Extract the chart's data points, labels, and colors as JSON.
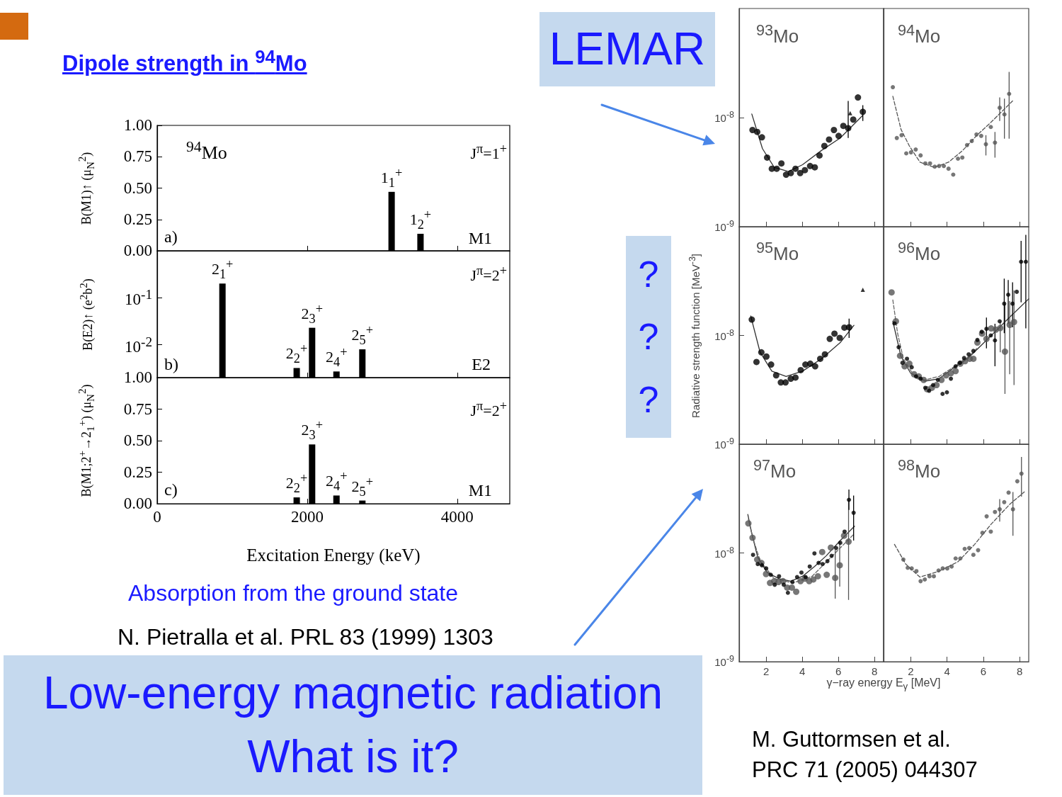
{
  "chart_data": [
    {
      "type": "bar",
      "title": "Dipole strength in $^{94}$Mo",
      "ylabel": "B(M1)↑ (μ$_{N}$$^{2}$)",
      "x": [
        3125,
        3510
      ],
      "values": [
        0.47,
        0.135
      ],
      "color": "#000000",
      "xlim": [
        0,
        4700
      ],
      "xticks": [
        0,
        2000,
        4000
      ],
      "ylim": [
        0,
        1
      ],
      "yticks": [
        {
          "value": 0,
          "label": "0.00"
        },
        {
          "value": 0.25,
          "label": "0.25"
        },
        {
          "value": 0.5,
          "label": "0.50"
        },
        {
          "value": 0.75,
          "label": "0.75"
        },
        {
          "value": 1,
          "label": "1.00"
        }
      ],
      "tick_labels": "y",
      "annotations": [
        "$^{94}$Mo",
        "J$^{π}$=1$^{+}$",
        "M1",
        "a)",
        {
          "text": "1$_{1}$$^{+}$",
          "x": 3125,
          "y": 0.47
        },
        {
          "text": "1$_{2}$$^{+}$",
          "x": 3510,
          "y": 0.135
        }
      ]
    },
    {
      "type": "bar",
      "ylabel": "B(E2)↑ (e$^{2}$b$^{2}$)",
      "x": [
        870,
        1860,
        2065,
        2390,
        2735
      ],
      "values": [
        0.2,
        0.0032,
        0.023,
        0.0027,
        0.008
      ],
      "color": "#000000",
      "xlim": [
        0,
        4700
      ],
      "xticks": [
        0,
        2000,
        4000
      ],
      "ylim": [
        0.002,
        1
      ],
      "yticks": [
        {
          "value": 0.1,
          "label": "10$^{-1}$"
        },
        {
          "value": 0.01,
          "label": "10$^{-2}$"
        }
      ],
      "log": "y",
      "tick_labels": "y",
      "annotations": [
        "J$^{π}$=2$^{+}$",
        "E2",
        "b)",
        {
          "text": "2$_{1}$$^{+}$",
          "x": 870,
          "y": 0.2
        },
        {
          "text": "2$_{2}$$^{+}$",
          "x": 1860,
          "y": 0.0032
        },
        {
          "text": "2$_{3}$$^{+}$",
          "x": 2065,
          "y": 0.023
        },
        {
          "text": "2$_{4}$$^{+}$",
          "x": 2390,
          "y": 0.0027
        },
        {
          "text": "2$_{5}$$^{+}$",
          "x": 2735,
          "y": 0.008
        }
      ]
    },
    {
      "type": "bar",
      "ylabel": "B(M1;2$^{+}$→2$_{1}$$^{+}$) (μ$_{N}$$^{2}$)",
      "xlabel": "Excitation Energy (keV)",
      "x": [
        1860,
        2065,
        2390,
        2735
      ],
      "values": [
        0.05,
        0.47,
        0.065,
        0.025
      ],
      "color": "#000000",
      "xlim": [
        0,
        4700
      ],
      "xticks": [
        0,
        2000,
        4000
      ],
      "ylim": [
        0,
        1
      ],
      "yticks": [
        {
          "value": 0,
          "label": "0.00"
        },
        {
          "value": 0.25,
          "label": "0.25"
        },
        {
          "value": 0.5,
          "label": "0.50"
        },
        {
          "value": 0.75,
          "label": "0.75"
        },
        {
          "value": 1,
          "label": "1.00"
        }
      ],
      "annotations": [
        "J$^{π}$=2$^{+}$",
        "M1",
        "c)",
        "Absorption from the ground state",
        "N. Pietralla et al. PRL 83 (1999) 1303",
        {
          "text": "2$_{2}$$^{+}$",
          "x": 1860,
          "y": 0.05
        },
        {
          "text": "2$_{3}$$^{+}$",
          "x": 2065,
          "y": 0.47
        },
        {
          "text": "2$_{4}$$^{+}$",
          "x": 2390,
          "y": 0.065
        },
        {
          "text": "2$_{5}$$^{+}$",
          "x": 2735,
          "y": 0.025
        }
      ]
    },
    {
      "type": "scatter",
      "xlim": [
        0.5,
        8.5
      ],
      "xticks": [
        2,
        4,
        6,
        8
      ],
      "ylim": [
        1e-09,
        1e-07
      ],
      "yticks": [
        {
          "value": 1e-09,
          "label": "10$^{-9}$"
        },
        {
          "value": 1e-08,
          "label": "10$^{-8}$"
        }
      ],
      "log": "y",
      "tick_labels": "y",
      "annotations": [
        "$^{93}$Mo",
        "LEMAR"
      ],
      "series": [
        {
          "type": "line",
          "line_style": "solid",
          "color": "#333333",
          "x": [
            1.2,
            1.79,
            2.44,
            3.23,
            4.01,
            5.06,
            6.1,
            7.35
          ],
          "values": [
            1.08e-08,
            5.2e-09,
            3.5e-09,
            3.2e-09,
            3.7e-09,
            5e-09,
            6.5e-09,
            1.05e-08
          ]
        },
        {
          "marker": "circle",
          "color": "#000000",
          "x": [
            1.24,
            1.5,
            1.76,
            2.05,
            2.31,
            2.58,
            2.84,
            3.1,
            3.36,
            3.62,
            3.88,
            4.14,
            4.43,
            4.69,
            4.95,
            5.22,
            5.48,
            5.75,
            6.01,
            6.27,
            6.54,
            6.82,
            7.08,
            7.35
          ],
          "values": [
            7.7e-09,
            7.4e-09,
            6.6e-09,
            4.3e-09,
            3.4e-09,
            3.4e-09,
            3.8e-09,
            3e-09,
            3.1e-09,
            3.4e-09,
            3.1e-09,
            3.3e-09,
            3.6e-09,
            3.5e-09,
            4.5e-09,
            5.5e-09,
            6.3e-09,
            7.7e-09,
            6.8e-09,
            8.4e-09,
            8e-09,
            9.6e-09,
            1.53e-08,
            1.13e-08
          ],
          "errors": [
            null,
            null,
            null,
            null,
            null,
            null,
            null,
            null,
            null,
            null,
            null,
            null,
            null,
            null,
            null,
            null,
            null,
            null,
            null,
            null,
            [
              6.5e-09,
              1.42e-08
            ],
            null,
            null,
            [
              9.3e-09,
              1.3e-08
            ]
          ]
        },
        {
          "marker": "triangle",
          "color": "#000000",
          "x": [
            6.65
          ],
          "values": [
            1.1e-08
          ]
        }
      ]
    },
    {
      "type": "scatter",
      "xlim": [
        0.5,
        8.5
      ],
      "xticks": [
        2,
        4,
        6,
        8
      ],
      "ylim": [
        1e-09,
        1e-07
      ],
      "log": "y",
      "tick_labels": false,
      "annotations": [
        "$^{94}$Mo"
      ],
      "series": [
        {
          "type": "line",
          "line_style": "dashed",
          "color": "#555555",
          "x": [
            1.01,
            1.46,
            1.92,
            2.51,
            3.29,
            4.08,
            4.86,
            5.65,
            6.43,
            7.61
          ],
          "values": [
            1.57e-08,
            7.8e-09,
            5.5e-09,
            3.9e-09,
            3.5e-09,
            3.9e-09,
            5e-09,
            6.9e-09,
            9.1e-09,
            1.42e-08
          ]
        },
        {
          "marker": "circle",
          "color": "#555555",
          "x": [
            1.01,
            1.23,
            1.49,
            1.75,
            2.01,
            2.27,
            2.54,
            2.8,
            3.06,
            3.32,
            3.56,
            3.82,
            4.08,
            4.34,
            4.6,
            4.84,
            5.1,
            5.36,
            5.62,
            5.88,
            6.14,
            6.41,
            6.64,
            6.9,
            7.16,
            7.42
          ],
          "values": [
            1.9e-08,
            6.5e-09,
            6.9e-09,
            4.7e-09,
            4.8e-09,
            5.1e-09,
            4.5e-09,
            3.8e-09,
            3.8e-09,
            3.55e-09,
            3.6e-09,
            3.6e-09,
            3.4e-09,
            3e-09,
            4.2e-09,
            4.3e-09,
            5.6e-09,
            6.1e-09,
            7e-09,
            6.8e-09,
            5.7e-09,
            8.2e-09,
            5.9e-09,
            1.23e-08,
            1.07e-08,
            1.65e-08
          ],
          "errors": [
            null,
            null,
            null,
            null,
            null,
            null,
            null,
            null,
            null,
            null,
            null,
            null,
            null,
            null,
            null,
            null,
            null,
            null,
            null,
            null,
            [
              4.5e-09,
              6.9e-09
            ],
            null,
            [
              4.3e-09,
              7.4e-09
            ],
            [
              9.3e-09,
              1.53e-08
            ],
            [
              6.4e-09,
              1.49e-08
            ],
            [
              6.4e-09,
              2.62e-08
            ]
          ]
        }
      ]
    },
    {
      "type": "scatter",
      "ylabel": "Radiative strength function [MeV$^{-3}$]",
      "xlim": [
        0.5,
        8.5
      ],
      "xticks": [
        2,
        4,
        6,
        8
      ],
      "ylim": [
        1e-09,
        1e-07
      ],
      "yticks": [
        {
          "value": 1e-09,
          "label": "10$^{-9}$"
        },
        {
          "value": 1e-08,
          "label": "10$^{-8}$"
        }
      ],
      "log": "y",
      "tick_labels": "y",
      "annotations": [
        "$^{95}$Mo",
        "?\n?\n?"
      ],
      "series": [
        {
          "type": "line",
          "line_style": "solid",
          "color": "#333333",
          "x": [
            1.14,
            1.66,
            2.31,
            3.1,
            4.01,
            5.06,
            6.1,
            6.86
          ],
          "values": [
            1.51e-08,
            7e-09,
            4.7e-09,
            4.2e-09,
            4.7e-09,
            6.1e-09,
            8.6e-09,
            1.24e-08
          ]
        },
        {
          "marker": "circle",
          "color": "#000000",
          "x": [
            1.2,
            1.46,
            1.73,
            2.01,
            2.27,
            2.55,
            2.81,
            3.07,
            3.36,
            3.62,
            3.91,
            4.17,
            4.44,
            4.71,
            4.99,
            5.25,
            5.52,
            5.78,
            6.07,
            6.33,
            6.59
          ],
          "values": [
            1.4e-08,
            5.7e-09,
            7e-09,
            6.4e-09,
            5.4e-09,
            4.3e-09,
            3.7e-09,
            3.7e-09,
            4e-09,
            4.1e-09,
            4.8e-09,
            5.4e-09,
            5.5e-09,
            5.2e-09,
            6.1e-09,
            6.7e-09,
            9.3e-09,
            1.04e-08,
            9.5e-09,
            1.18e-08,
            1.19e-08
          ],
          "errors": [
            null,
            null,
            null,
            null,
            null,
            null,
            null,
            null,
            null,
            null,
            null,
            null,
            null,
            null,
            null,
            null,
            null,
            null,
            null,
            null,
            [
              9.5e-09,
              1.43e-08
            ]
          ]
        },
        {
          "marker": "triangle",
          "color": "#000000",
          "x": [
            7.35
          ],
          "values": [
            2.63e-08
          ]
        }
      ]
    },
    {
      "type": "scatter",
      "xlim": [
        0.5,
        8.5
      ],
      "xticks": [
        2,
        4,
        6,
        8
      ],
      "ylim": [
        1e-09,
        1e-07
      ],
      "log": "y",
      "tick_labels": false,
      "annotations": [
        "$^{96}$Mo"
      ],
      "series": [
        {
          "type": "line",
          "line_style": "solid",
          "color": "#333333",
          "x": [
            1.01,
            1.46,
            1.99,
            2.77,
            3.56,
            4.34,
            5.12,
            5.91,
            6.69,
            7.48,
            8.5
          ],
          "values": [
            1.35e-08,
            6.4e-09,
            4.5e-09,
            3.8e-09,
            4e-09,
            5e-09,
            6.1e-09,
            8.2e-09,
            1.1e-08,
            1.49e-08,
            2.17e-08
          ]
        },
        {
          "type": "line",
          "line_style": "dashed",
          "color": "#666666",
          "x": [
            1.01,
            1.27,
            1.59,
            2.12,
            2.77,
            3.56,
            4.34,
            5.12,
            5.64
          ],
          "values": [
            2.12e-08,
            1.05e-08,
            6.1e-09,
            4.4e-09,
            3.9e-09,
            4.2e-09,
            5.1e-09,
            6.2e-09,
            7.6e-09
          ]
        },
        {
          "marker": "circle",
          "color": "#555555",
          "x": [
            0.94,
            1.18,
            1.41,
            1.66,
            1.92,
            2.18,
            2.44,
            2.71,
            2.9,
            3.16,
            3.42,
            3.69,
            3.95,
            4.21,
            4.47,
            4.73,
            4.99,
            5.25,
            5.45,
            5.67,
            5.93,
            6.17,
            6.43,
            6.69,
            6.93,
            7.19,
            7.45,
            7.69
          ],
          "values": [
            2.49e-08,
            1.35e-08,
            6.5e-09,
            5.2e-09,
            5.5e-09,
            4.4e-09,
            4.2e-09,
            3.9e-09,
            3.2e-09,
            3.3e-09,
            3.5e-09,
            3.9e-09,
            4.3e-09,
            4.5e-09,
            4.7e-09,
            5.5e-09,
            5.8e-09,
            6.1e-09,
            6.1e-09,
            8.6e-09,
            1.04e-08,
            9.3e-09,
            1.16e-08,
            1.13e-08,
            1.17e-08,
            7.1e-09,
            1.25e-08,
            1.33e-08
          ],
          "errors": [
            null,
            null,
            null,
            null,
            null,
            null,
            null,
            null,
            null,
            null,
            null,
            null,
            null,
            null,
            null,
            null,
            null,
            null,
            null,
            null,
            null,
            null,
            null,
            null,
            [
              7e-09,
              1.35e-08
            ],
            [
              2.9e-09,
              1.96e-08
            ],
            [
              4.4e-09,
              2.07e-08
            ],
            [
              3.5e-09,
              2.59e-08
            ]
          ]
        },
        {
          "marker": "circle",
          "color": "#000000",
          "x": [
            1.1,
            1.33,
            1.54,
            1.79,
            2.05,
            2.29,
            2.54,
            2.8,
            3.01,
            3.23,
            3.49,
            3.75,
            3.99,
            4.21,
            4.47,
            4.71,
            4.94,
            5.19,
            5.45,
            5.67,
            5.91,
            6.17,
            6.41,
            6.64,
            6.9,
            7.15,
            7.37,
            7.61,
            7.84,
            8.08,
            8.34
          ],
          "values": [
            1.29e-08,
            7.8e-09,
            5.6e-09,
            6.1e-09,
            5.1e-09,
            4.2e-09,
            4e-09,
            3.3e-09,
            3.1e-09,
            3.5e-09,
            3.9e-09,
            2.9e-09,
            3e-09,
            4e-09,
            5.2e-09,
            5.6e-09,
            6.2e-09,
            6.7e-09,
            7.2e-09,
            9.1e-09,
            1.08e-08,
            1.15e-08,
            1e-08,
            9e-09,
            1.35e-08,
            1.96e-08,
            2.37e-08,
            1.96e-08,
            2.52e-08,
            4.76e-08,
            4.76e-08
          ],
          "errors": [
            null,
            null,
            null,
            null,
            null,
            null,
            null,
            null,
            null,
            null,
            null,
            null,
            null,
            null,
            null,
            null,
            null,
            null,
            null,
            null,
            null,
            [
              7.6e-09,
              1.46e-08
            ],
            null,
            [
              5.2e-09,
              1.28e-08
            ],
            null,
            [
              1.05e-08,
              3.33e-08
            ],
            [
              1.28e-08,
              3.24e-08
            ],
            [
              1.19e-08,
              3.08e-08
            ],
            null,
            [
              2.02e-08,
              7.4e-08
            ],
            [
              1.16e-08,
              8.4e-08
            ]
          ]
        }
      ]
    },
    {
      "type": "scatter",
      "xlabel": "γ−ray energy E$_{γ}$ [MeV]",
      "xlim": [
        0.5,
        8.5
      ],
      "xticks": [
        2,
        4,
        6,
        8
      ],
      "ylim": [
        1e-09,
        1e-07
      ],
      "yticks": [
        {
          "value": 1e-09,
          "label": "10$^{-9}$"
        },
        {
          "value": 1e-08,
          "label": "10$^{-8}$"
        }
      ],
      "log": "y",
      "annotations": [
        "$^{97}$Mo",
        "Low-energy magnetic radiation\nWhat is it?"
      ],
      "series": [
        {
          "type": "line",
          "line_style": "solid",
          "color": "#333333",
          "x": [
            0.98,
            1.2,
            1.53,
            2.05,
            2.71,
            3.36,
            4.01,
            4.67,
            5.32,
            6.1,
            6.89
          ],
          "values": [
            2.26e-08,
            1.51e-08,
            9.1e-09,
            6.6e-09,
            5.8e-09,
            5.5e-09,
            6.1e-09,
            7.5e-09,
            9.4e-09,
            1.3e-08,
            1.76e-08
          ]
        },
        {
          "type": "line",
          "line_style": "dashed",
          "color": "#666666",
          "x": [
            1.01,
            1.27,
            1.66,
            2.44,
            3.49,
            4.54,
            5.58,
            6.89
          ],
          "values": [
            2.04e-08,
            1.35e-08,
            8.5e-09,
            5.8e-09,
            5.3e-09,
            6.1e-09,
            9.1e-09,
            1.51e-08
          ]
        },
        {
          "marker": "circle",
          "color": "#555555",
          "x": [
            1.01,
            1.24,
            1.5,
            1.73,
            1.99,
            2.21,
            2.44,
            2.68,
            2.93,
            3.16,
            3.42,
            3.66,
            3.9,
            4.14,
            4.38,
            4.61,
            4.86,
            5.1,
            5.35,
            5.58,
            5.82,
            6.07,
            6.31,
            6.56
          ],
          "values": [
            1.87e-08,
            1.38e-08,
            8.7e-09,
            8.1e-09,
            6.4e-09,
            5.3e-09,
            5.5e-09,
            5.4e-09,
            5.5e-09,
            4.8e-09,
            4.8e-09,
            4.4e-09,
            5.5e-09,
            5.8e-09,
            5.5e-09,
            5.7e-09,
            6.1e-09,
            1.02e-08,
            6.3e-09,
            1.12e-08,
            5.9e-09,
            7.7e-09,
            1.44e-08,
            1.27e-08
          ],
          "errors": [
            null,
            null,
            null,
            null,
            null,
            null,
            null,
            null,
            null,
            null,
            null,
            null,
            null,
            null,
            null,
            null,
            null,
            null,
            null,
            null,
            [
              3.8e-09,
              1.06e-08
            ],
            [
              4.9e-09,
              1.3e-08
            ],
            null,
            [
              3.7e-09,
              3.05e-08
            ]
          ]
        },
        {
          "marker": "circle",
          "color": "#000000",
          "x": [
            1.27,
            1.53,
            1.76,
            2.0,
            2.25,
            2.47,
            2.71,
            2.97,
            3.2,
            3.45,
            3.71,
            3.95,
            4.18,
            4.41,
            4.67,
            4.9,
            5.12,
            5.39,
            5.62,
            5.87,
            6.1,
            6.34,
            6.58,
            6.84
          ],
          "values": [
            9.6e-09,
            7.9e-09,
            7.7e-09,
            7.2e-09,
            6.3e-09,
            5.1e-09,
            6.1e-09,
            5.1e-09,
            4.3e-09,
            5.4e-09,
            6e-09,
            6.6e-09,
            6e-09,
            7.5e-09,
            9.9e-09,
            8.1e-09,
            7.9e-09,
            8.4e-09,
            9.4e-09,
            1.11e-08,
            1.24e-08,
            1.57e-08,
            3.08e-08,
            2.34e-08
          ],
          "errors": [
            null,
            null,
            null,
            null,
            null,
            null,
            null,
            null,
            null,
            null,
            null,
            null,
            null,
            null,
            null,
            null,
            null,
            null,
            null,
            null,
            null,
            null,
            [
              2.49e-08,
              3.83e-08
            ],
            [
              1.3e-08,
              3.37e-08
            ]
          ]
        }
      ]
    },
    {
      "type": "scatter",
      "xlim": [
        0.5,
        8.5
      ],
      "xticks": [
        2,
        4,
        6,
        8
      ],
      "ylim": [
        1e-09,
        1e-07
      ],
      "log": "y",
      "tick_labels": "x",
      "annotations": [
        "$^{98}$Mo",
        "M. Guttormsen et al.\nPRC 71 (2005) 044307"
      ],
      "series": [
        {
          "type": "line",
          "line_style": "dashed",
          "color": "#555555",
          "x": [
            1.1,
            1.72,
            2.5,
            3.56,
            4.6,
            5.52,
            6.43,
            7.48,
            8.26
          ],
          "values": [
            1.2e-08,
            7.9e-09,
            6e-09,
            6.8e-09,
            8.3e-09,
            1.2e-08,
            1.84e-08,
            2.83e-08,
            3.64e-08
          ]
        },
        {
          "marker": "circle",
          "color": "#555555",
          "x": [
            1.59,
            1.83,
            2.05,
            2.31,
            2.54,
            2.77,
            3.03,
            3.27,
            3.53,
            3.76,
            4.01,
            4.25,
            4.47,
            4.73,
            4.97,
            5.22,
            5.45,
            5.71,
            5.95,
            6.18,
            6.41,
            6.64,
            6.9,
            7.15,
            7.39,
            7.63,
            7.87,
            8.1
          ],
          "values": [
            8.7e-09,
            7.3e-09,
            7.2e-09,
            6.8e-09,
            5.5e-09,
            5.7e-09,
            6.1e-09,
            6.1e-09,
            6.9e-09,
            7.2e-09,
            7.2e-09,
            7.5e-09,
            8.9e-09,
            8.9e-09,
            1.09e-08,
            1.11e-08,
            9.6e-09,
            1.06e-08,
            1.53e-08,
            2.17e-08,
            1.57e-08,
            2.38e-08,
            2.52e-08,
            2.93e-08,
            3.59e-08,
            2.52e-08,
            4.56e-08,
            5.36e-08
          ],
          "errors": [
            null,
            null,
            null,
            null,
            null,
            null,
            null,
            null,
            null,
            null,
            null,
            null,
            null,
            null,
            null,
            null,
            null,
            null,
            null,
            null,
            null,
            null,
            [
              1.94e-08,
              3.13e-08
            ],
            null,
            null,
            [
              1.44e-08,
              3.63e-08
            ],
            null,
            [
              3.29e-08,
              7.62e-08
            ]
          ]
        }
      ]
    }
  ]
}
